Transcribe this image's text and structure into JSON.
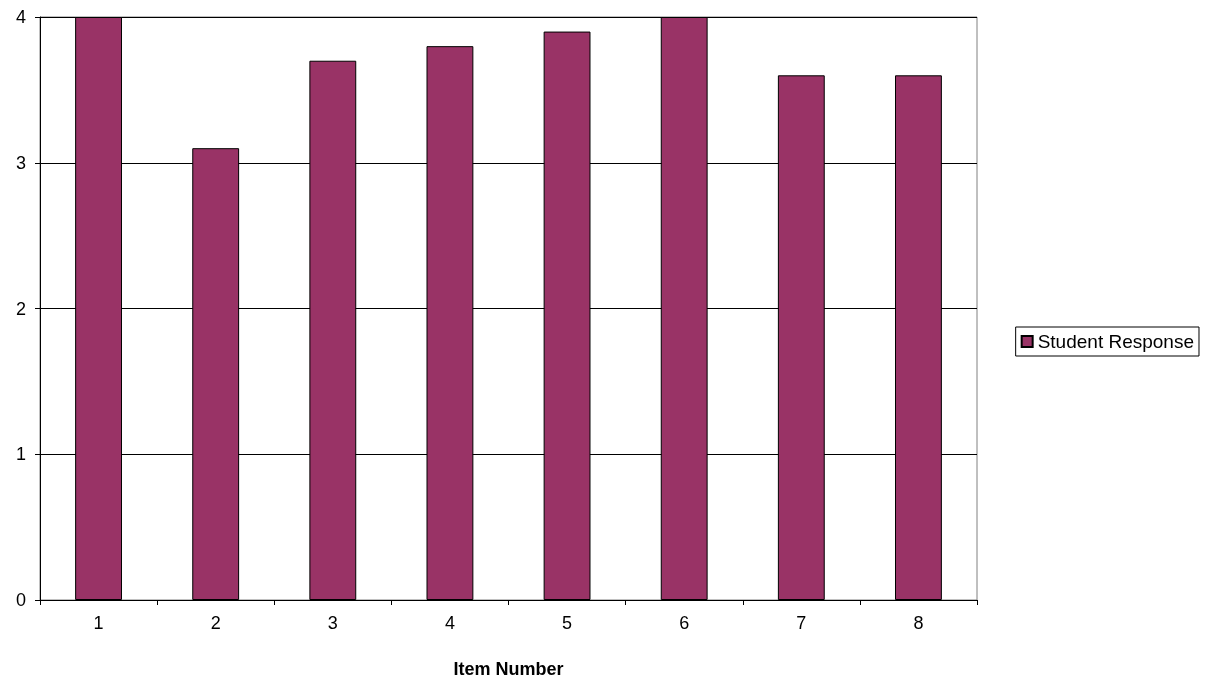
{
  "chart_data": {
    "type": "bar",
    "xlabel": "Item Number",
    "categories": [
      "1",
      "2",
      "3",
      "4",
      "5",
      "6",
      "7",
      "8"
    ],
    "series": [
      {
        "name": "Student Response",
        "color": "#993366",
        "values": [
          4,
          3.1,
          3.7,
          3.8,
          3.9,
          4,
          3.6,
          3.6
        ]
      }
    ],
    "ylim": [
      0,
      4
    ],
    "yticks": [
      0,
      1,
      2,
      3,
      4
    ],
    "grid": "y",
    "legend": "right"
  }
}
